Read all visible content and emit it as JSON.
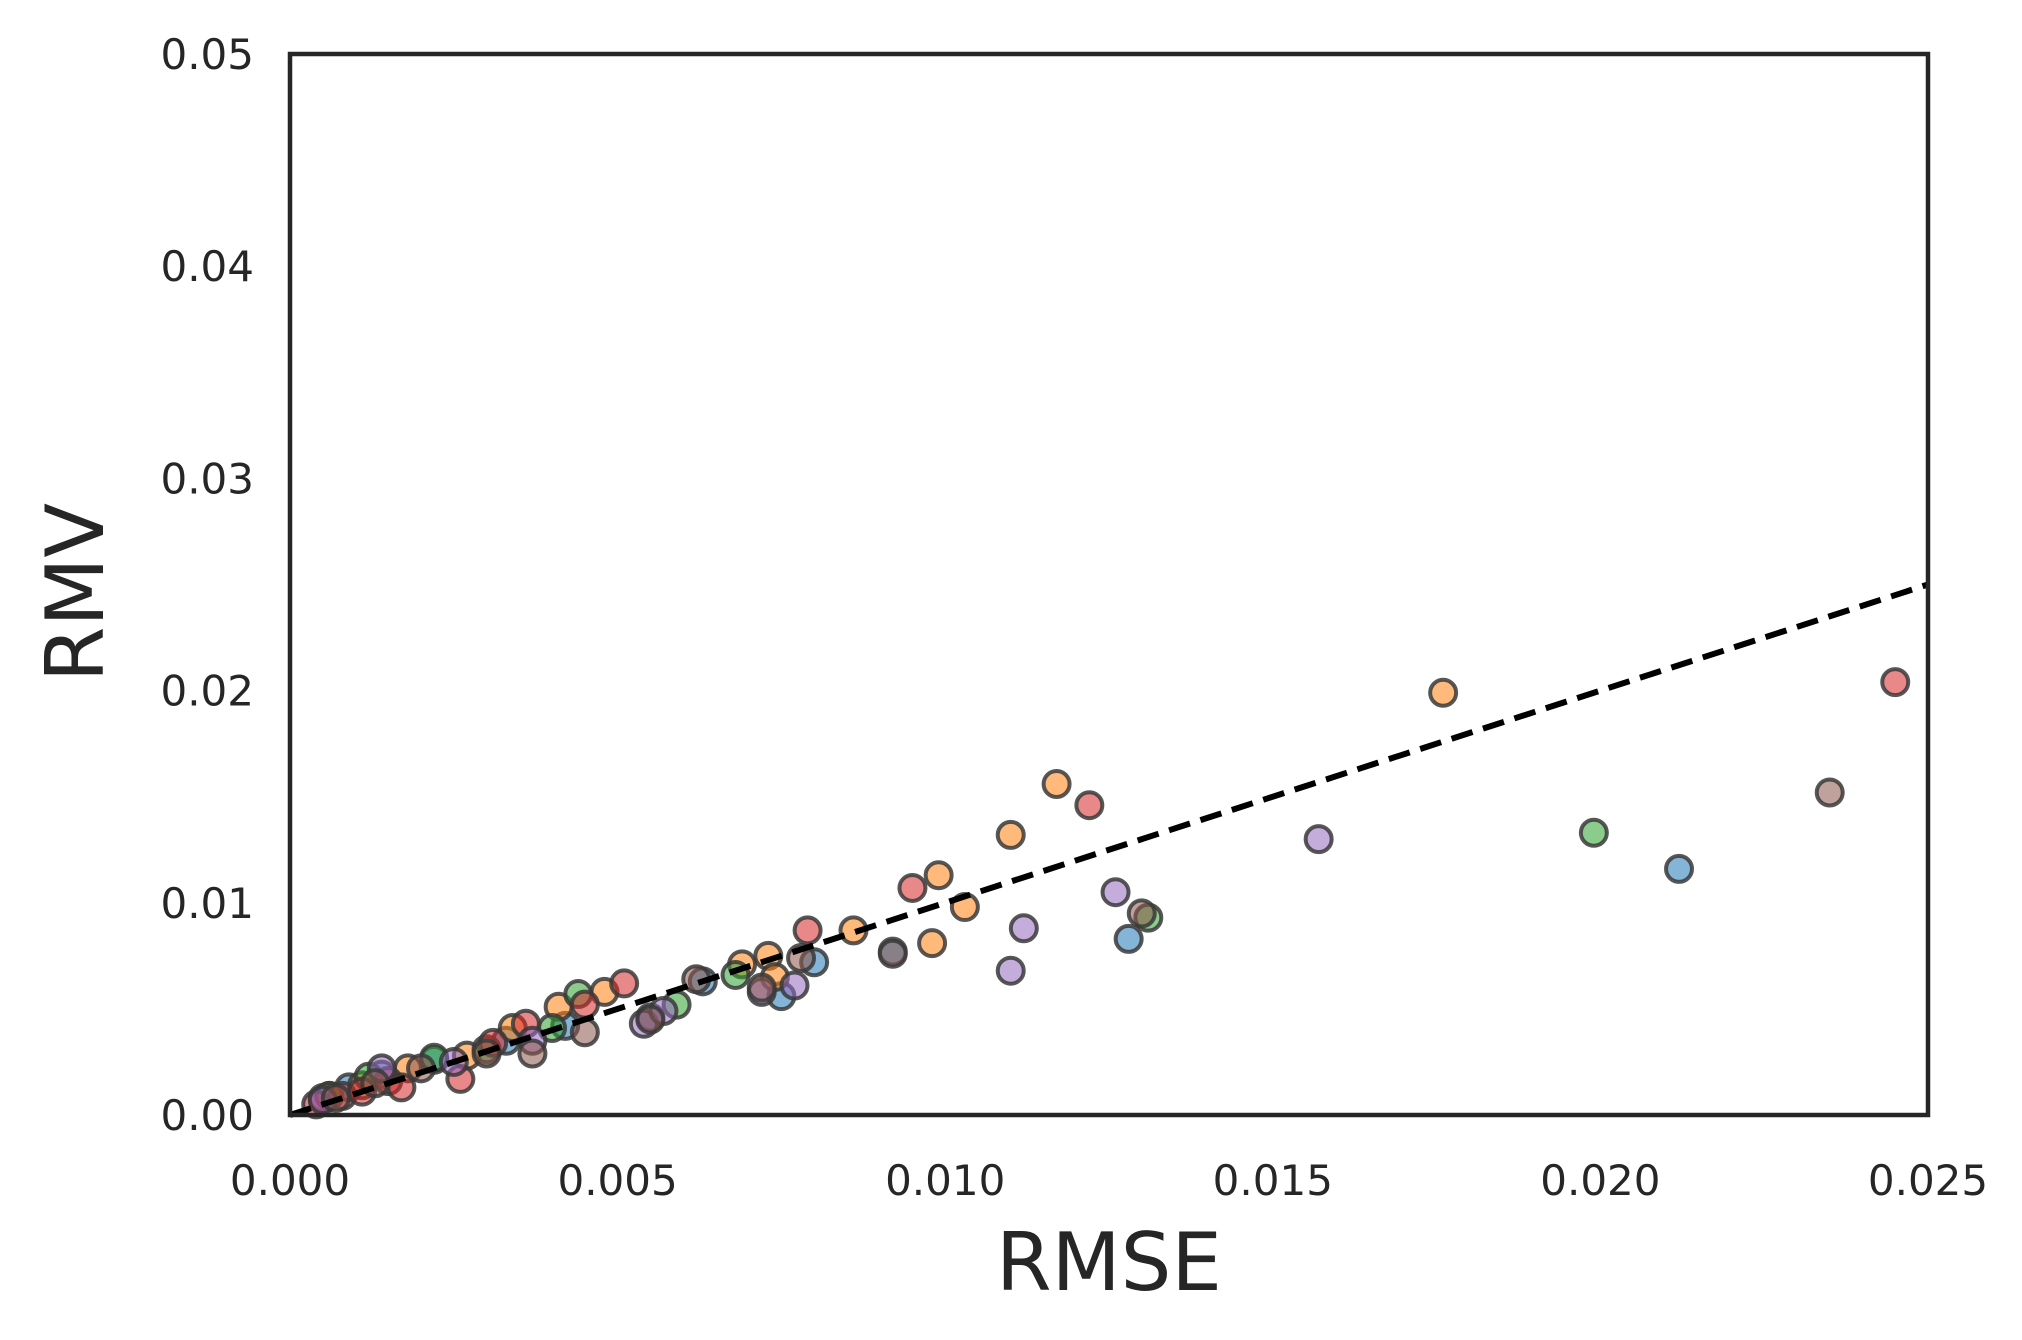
{
  "chart_data": {
    "type": "scatter",
    "title": "",
    "xlabel": "RMSE",
    "ylabel": "RMV",
    "xlim": [
      0.0,
      0.025
    ],
    "ylim": [
      0.0,
      0.05
    ],
    "xticks": [
      "0.000",
      "0.005",
      "0.010",
      "0.015",
      "0.020",
      "0.025"
    ],
    "yticks": [
      "0.00",
      "0.01",
      "0.02",
      "0.03",
      "0.04",
      "0.05"
    ],
    "xtick_values": [
      0.0,
      0.005,
      0.01,
      0.015,
      0.02,
      0.025
    ],
    "ytick_values": [
      0.0,
      0.01,
      0.02,
      0.03,
      0.04,
      0.05
    ],
    "grid": false,
    "legend": "none",
    "colors": {
      "blue": "#1f77b4",
      "orange": "#ff7f0e",
      "green": "#2ca02c",
      "red": "#d62728",
      "purple": "#9467bd",
      "brown": "#8c564b",
      "reference_line": "#000000"
    },
    "reference_line": {
      "style": "dashed",
      "x": [
        0.0,
        0.025
      ],
      "y": [
        0.0,
        0.025
      ]
    },
    "series": [
      {
        "color": "blue",
        "points": [
          [
            0.0005,
            0.0008
          ],
          [
            0.0009,
            0.0013
          ],
          [
            0.0014,
            0.0019
          ],
          [
            0.0022,
            0.0026
          ],
          [
            0.0033,
            0.0035
          ],
          [
            0.0042,
            0.0042
          ],
          [
            0.0055,
            0.0046
          ],
          [
            0.0063,
            0.0063
          ],
          [
            0.0075,
            0.0056
          ],
          [
            0.008,
            0.0072
          ],
          [
            0.0092,
            0.0077
          ],
          [
            0.0128,
            0.0083
          ],
          [
            0.0212,
            0.0116
          ]
        ]
      },
      {
        "color": "orange",
        "points": [
          [
            0.0006,
            0.0009
          ],
          [
            0.0011,
            0.0014
          ],
          [
            0.0018,
            0.0022
          ],
          [
            0.0027,
            0.0028
          ],
          [
            0.0034,
            0.0041
          ],
          [
            0.0041,
            0.0051
          ],
          [
            0.0048,
            0.0058
          ],
          [
            0.0069,
            0.0071
          ],
          [
            0.0073,
            0.0075
          ],
          [
            0.0074,
            0.0065
          ],
          [
            0.0086,
            0.0087
          ],
          [
            0.0098,
            0.0081
          ],
          [
            0.0099,
            0.0113
          ],
          [
            0.0103,
            0.0098
          ],
          [
            0.011,
            0.0132
          ],
          [
            0.0117,
            0.0156
          ],
          [
            0.0176,
            0.0199
          ]
        ]
      },
      {
        "color": "green",
        "points": [
          [
            0.0006,
            0.0009
          ],
          [
            0.0012,
            0.0018
          ],
          [
            0.0022,
            0.0027
          ],
          [
            0.003,
            0.0031
          ],
          [
            0.004,
            0.0041
          ],
          [
            0.0044,
            0.0057
          ],
          [
            0.0059,
            0.0052
          ],
          [
            0.0068,
            0.0066
          ],
          [
            0.0131,
            0.0093
          ],
          [
            0.0199,
            0.0133
          ]
        ]
      },
      {
        "color": "red",
        "points": [
          [
            0.0004,
            0.0005
          ],
          [
            0.0008,
            0.0009
          ],
          [
            0.0011,
            0.0011
          ],
          [
            0.0015,
            0.0016
          ],
          [
            0.0017,
            0.0013
          ],
          [
            0.0026,
            0.0017
          ],
          [
            0.0031,
            0.0034
          ],
          [
            0.0036,
            0.0043
          ],
          [
            0.0045,
            0.0052
          ],
          [
            0.0051,
            0.0062
          ],
          [
            0.0079,
            0.0087
          ],
          [
            0.0095,
            0.0107
          ],
          [
            0.0122,
            0.0146
          ],
          [
            0.0245,
            0.0204
          ]
        ]
      },
      {
        "color": "purple",
        "points": [
          [
            0.0005,
            0.0007
          ],
          [
            0.0014,
            0.0022
          ],
          [
            0.0025,
            0.0025
          ],
          [
            0.0037,
            0.0035
          ],
          [
            0.0054,
            0.0043
          ],
          [
            0.0057,
            0.0049
          ],
          [
            0.0072,
            0.0058
          ],
          [
            0.0077,
            0.0061
          ],
          [
            0.011,
            0.0068
          ],
          [
            0.0112,
            0.0088
          ],
          [
            0.0126,
            0.0105
          ],
          [
            0.0157,
            0.013
          ]
        ]
      },
      {
        "color": "brown",
        "points": [
          [
            0.0007,
            0.0008
          ],
          [
            0.0013,
            0.0015
          ],
          [
            0.002,
            0.0022
          ],
          [
            0.003,
            0.0029
          ],
          [
            0.0037,
            0.0029
          ],
          [
            0.0045,
            0.0039
          ],
          [
            0.0055,
            0.0045
          ],
          [
            0.0062,
            0.0064
          ],
          [
            0.0072,
            0.006
          ],
          [
            0.0078,
            0.0074
          ],
          [
            0.0092,
            0.0076
          ],
          [
            0.013,
            0.0095
          ],
          [
            0.0235,
            0.0152
          ]
        ]
      }
    ]
  }
}
